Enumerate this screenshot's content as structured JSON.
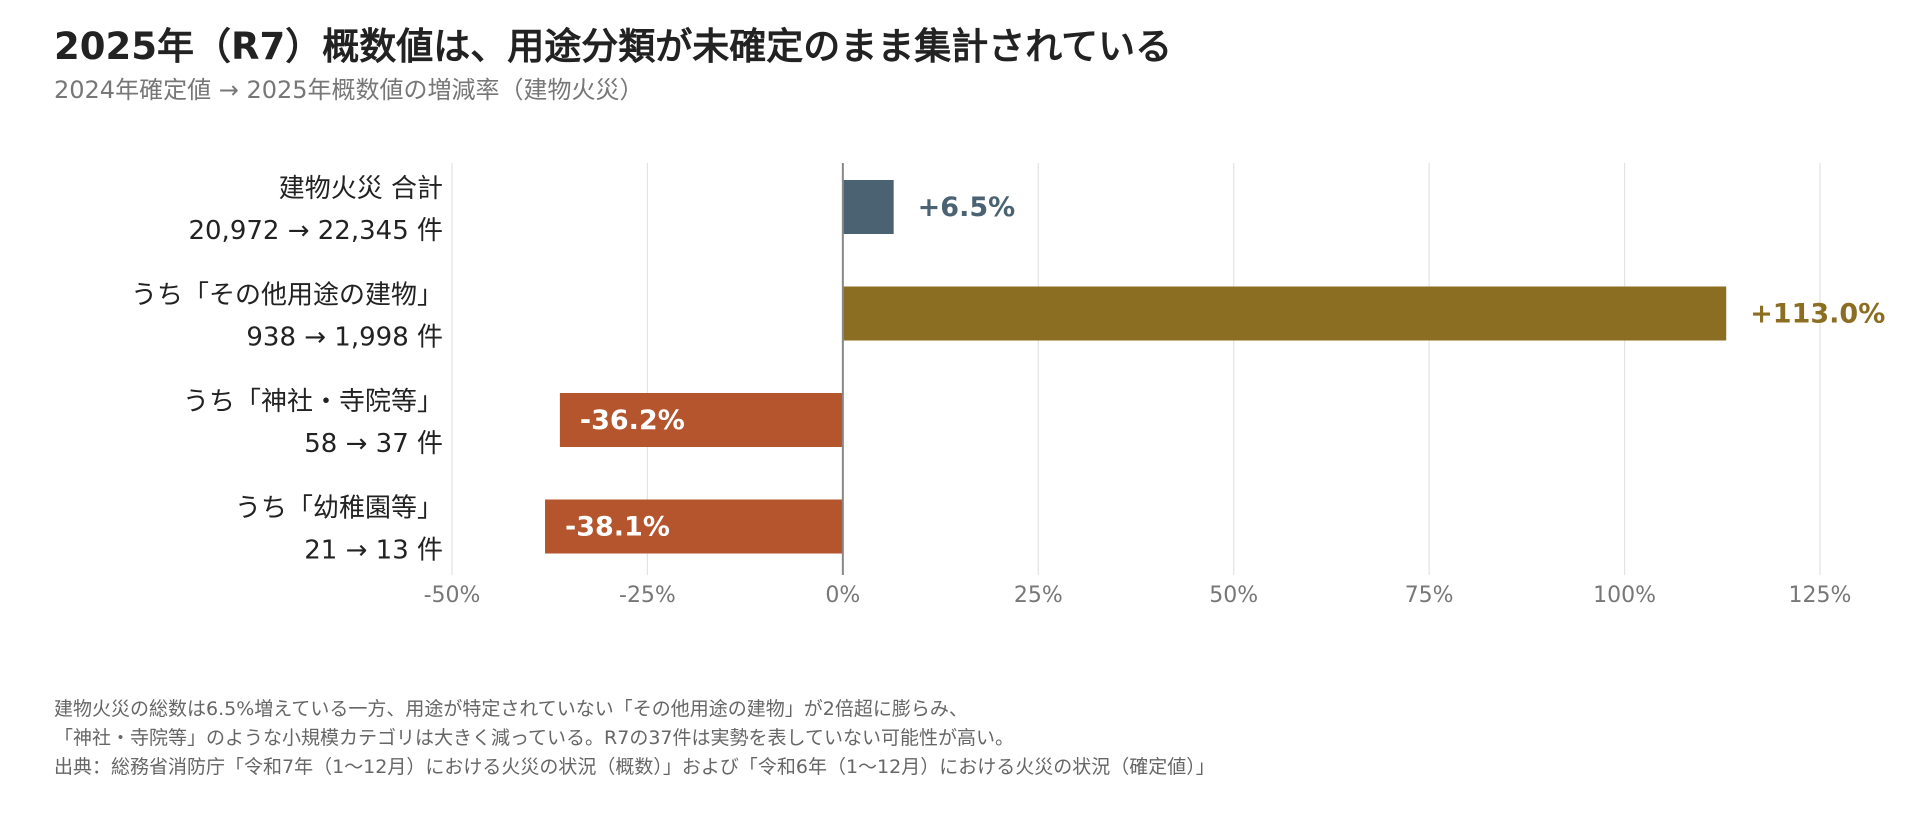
{
  "title": "2025年（R7）概数値は、用途分類が未確定のまま集計されている",
  "subtitle": "2024年確定値 → 2025年概数値の増減率（建物火災）",
  "notes": [
    "建物火災の総数は6.5%増えている一方、用途が特定されていない「その他用途の建物」が2倍超に膨らみ、",
    "「神社・寺院等」のような小規模カテゴリは大きく減っている。R7の37件は実勢を表していない可能性が高い。",
    "出典：総務省消防庁「令和7年（1〜12月）における火災の状況（概数）」および「令和6年（1〜12月）における火災の状況（確定値）」"
  ],
  "chart_data": {
    "type": "bar",
    "orientation": "horizontal",
    "categories": [
      "建物火災 合計",
      "うち「その他用途の建物」",
      "うち「神社・寺院等」",
      "うち「幼稚園等」"
    ],
    "sublabels": [
      "20,972 → 22,345 件",
      "938 → 1,998 件",
      "58 → 37 件",
      "21 → 13 件"
    ],
    "values": [
      6.5,
      113.0,
      -36.2,
      -38.1
    ],
    "value_labels": [
      "+6.5%",
      "+113.0%",
      "-36.2%",
      "-38.1%"
    ],
    "colors": [
      "#4a6272",
      "#8b6e21",
      "#b5552e",
      "#b5552e"
    ],
    "xlim": [
      -50,
      125
    ],
    "xticks": [
      -50,
      -25,
      0,
      25,
      50,
      75,
      100,
      125
    ],
    "xtick_labels": [
      "-50%",
      "-25%",
      "0%",
      "25%",
      "50%",
      "75%",
      "100%",
      "125%"
    ],
    "grid": true
  }
}
